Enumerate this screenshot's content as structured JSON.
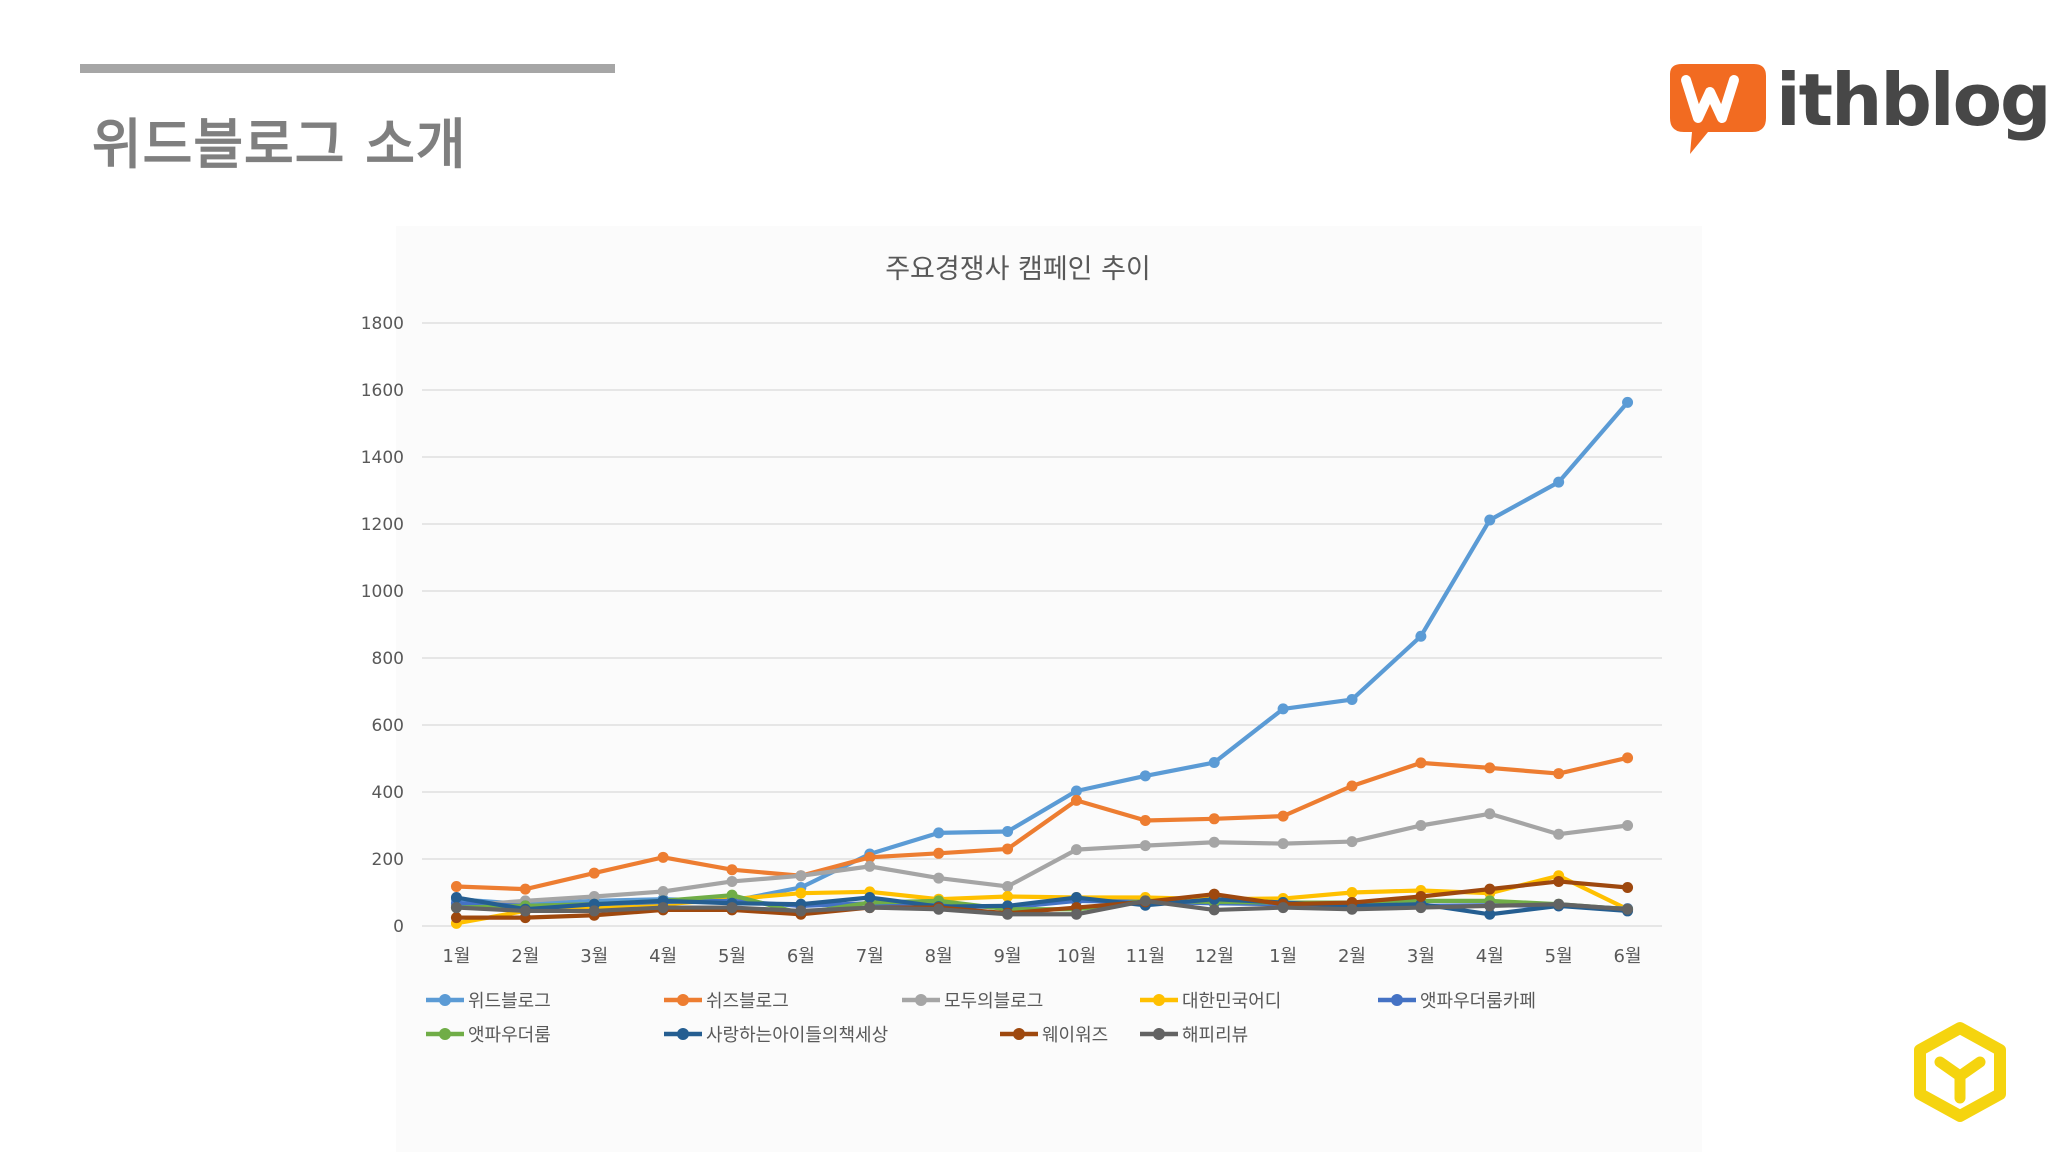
{
  "slide": {
    "title": "위드블로그 소개",
    "logo": {
      "accent": "W",
      "rest": "ithblog",
      "accent_color": "#f26b21",
      "text_color": "#474747"
    },
    "corner_icon": "cube-logo-icon",
    "corner_icon_color": "#f5d40f"
  },
  "chart_data": {
    "type": "line",
    "title": "주요경쟁사 캠페인 추이",
    "xlabel": "",
    "ylabel": "",
    "ylim": [
      0,
      1800
    ],
    "yticks": [
      "0",
      "200",
      "400",
      "600",
      "800",
      "1000",
      "1200",
      "1400",
      "1600",
      "1800"
    ],
    "grid": true,
    "legend_position": "bottom",
    "categories": [
      "1월",
      "2월",
      "3월",
      "4월",
      "5월",
      "6월",
      "7월",
      "8월",
      "9월",
      "10월",
      "11월",
      "12월",
      "1월",
      "2월",
      "3월",
      "4월",
      "5월",
      "6월"
    ],
    "series": [
      {
        "name": "위드블로그",
        "color": "#5b9bd5",
        "values": [
          80,
          65,
          75,
          80,
          75,
          115,
          215,
          278,
          282,
          403,
          448,
          488,
          648,
          676,
          865,
          1212,
          1325,
          1563
        ]
      },
      {
        "name": "쉬즈블로그",
        "color": "#ed7d31",
        "values": [
          118,
          110,
          158,
          205,
          168,
          150,
          205,
          217,
          230,
          375,
          315,
          320,
          328,
          418,
          487,
          472,
          455,
          502
        ]
      },
      {
        "name": "모두의블로그",
        "color": "#a5a5a5",
        "values": [
          60,
          75,
          88,
          103,
          133,
          150,
          178,
          143,
          118,
          228,
          240,
          250,
          246,
          252,
          300,
          335,
          274,
          300
        ]
      },
      {
        "name": "대한민국어디",
        "color": "#ffc000",
        "values": [
          8,
          45,
          55,
          65,
          80,
          98,
          102,
          80,
          88,
          85,
          85,
          80,
          82,
          100,
          106,
          98,
          150,
          50
        ]
      },
      {
        "name": "앳파우더룸카페",
        "color": "#4472c4",
        "values": [
          68,
          60,
          65,
          72,
          75,
          60,
          68,
          62,
          55,
          75,
          72,
          68,
          65,
          60,
          60,
          62,
          60,
          52
        ]
      },
      {
        "name": "앳파우더룸",
        "color": "#70ad47",
        "values": [
          55,
          60,
          65,
          75,
          92,
          38,
          70,
          75,
          50,
          50,
          75,
          72,
          70,
          70,
          75,
          75,
          65,
          50
        ]
      },
      {
        "name": "사랑하는아이들의책세상",
        "color": "#255e91",
        "values": [
          85,
          50,
          65,
          75,
          68,
          65,
          85,
          58,
          60,
          85,
          62,
          80,
          70,
          60,
          65,
          35,
          60,
          45
        ]
      },
      {
        "name": "웨이워즈",
        "color": "#9e480e",
        "values": [
          25,
          25,
          32,
          48,
          48,
          35,
          55,
          55,
          38,
          55,
          72,
          95,
          65,
          70,
          88,
          110,
          133,
          115
        ]
      },
      {
        "name": "해피리뷰",
        "color": "#636363",
        "values": [
          55,
          45,
          45,
          55,
          55,
          45,
          55,
          50,
          35,
          35,
          75,
          48,
          55,
          50,
          55,
          60,
          65,
          50
        ]
      }
    ]
  }
}
